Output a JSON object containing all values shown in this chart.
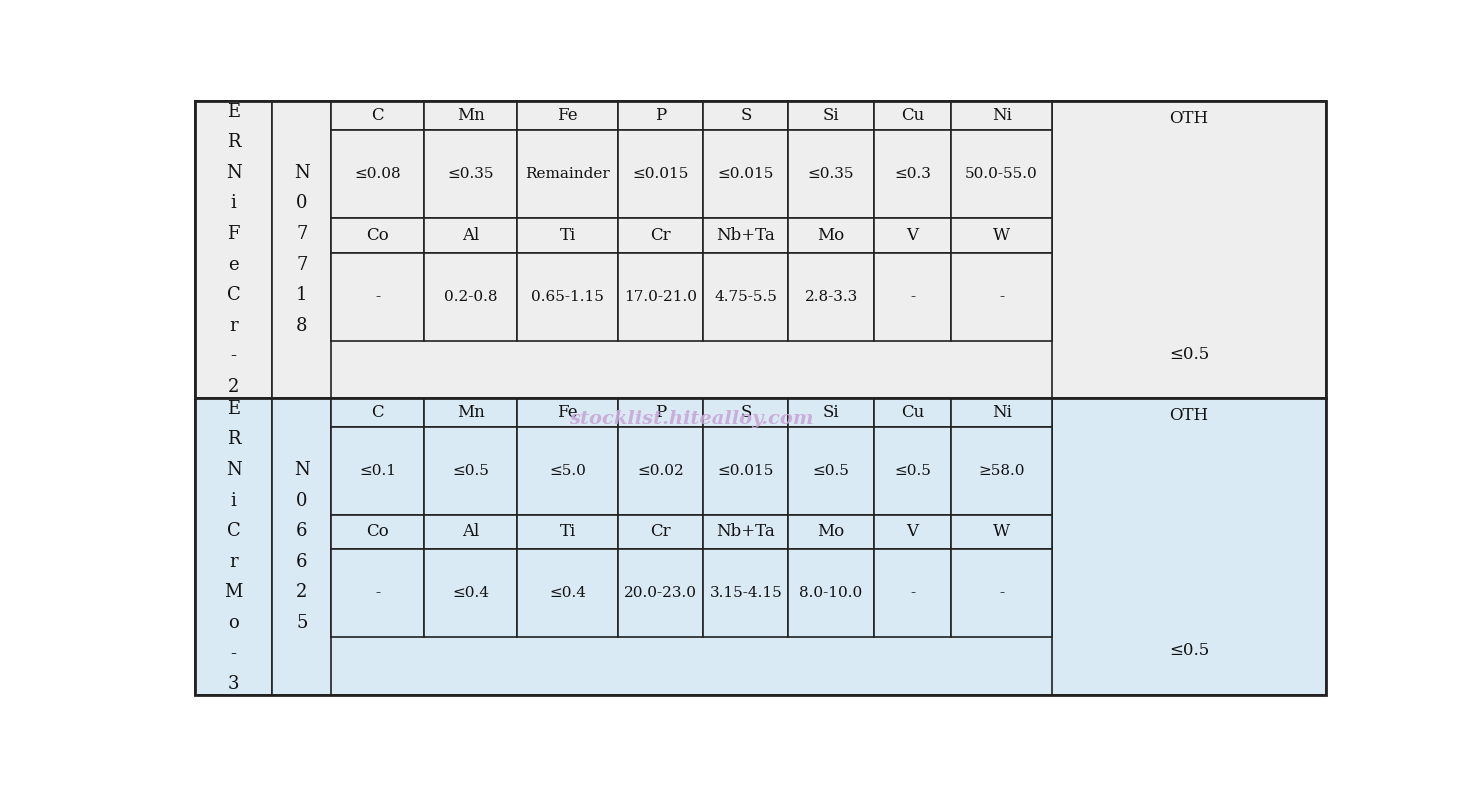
{
  "bg_color_top": "#eeeeee",
  "bg_color_bottom": "#daeaf5",
  "watermark": "stocklist.hitealloy.com",
  "watermark_color": "#c8a8d8",
  "row1_name": "E\nR\nN\ni\nF\ne\nC\nr\n-\n2",
  "row1_spec": "N\n0\n7\n7\n1\n8",
  "row2_name": "E\nR\nN\ni\nC\nr\nM\no\n-\n3",
  "row2_spec": "N\n0\n6\n6\n2\n5",
  "header1": [
    "C",
    "Mn",
    "Fe",
    "P",
    "S",
    "Si",
    "Cu",
    "Ni"
  ],
  "header2": [
    "Co",
    "Al",
    "Ti",
    "Cr",
    "Nb+Ta",
    "Mo",
    "V",
    "W"
  ],
  "row1_data1": [
    "≤0.08",
    "≤0.35",
    "Remainder",
    "≤0.015",
    "≤0.015",
    "≤0.35",
    "≤0.3",
    "50.0-55.0"
  ],
  "row1_data2": [
    "-",
    "0.2-0.8",
    "0.65-1.15",
    "17.0-21.0",
    "4.75-5.5",
    "2.8-3.3",
    "-",
    "-"
  ],
  "row1_oth": "≤0.5",
  "row2_data1": [
    "≤0.1",
    "≤0.5",
    "≤5.0",
    "≤0.02",
    "≤0.015",
    "≤0.5",
    "≤0.5",
    "≥58.0"
  ],
  "row2_data2": [
    "-",
    "≤0.4",
    "≤0.4",
    "20.0-23.0",
    "3.15-4.15",
    "8.0-10.0",
    "-",
    "-"
  ],
  "row2_oth": "≤0.5",
  "line_color": "#222222",
  "text_color": "#111111",
  "watermark_text": "stocklist.hitealloy.com"
}
